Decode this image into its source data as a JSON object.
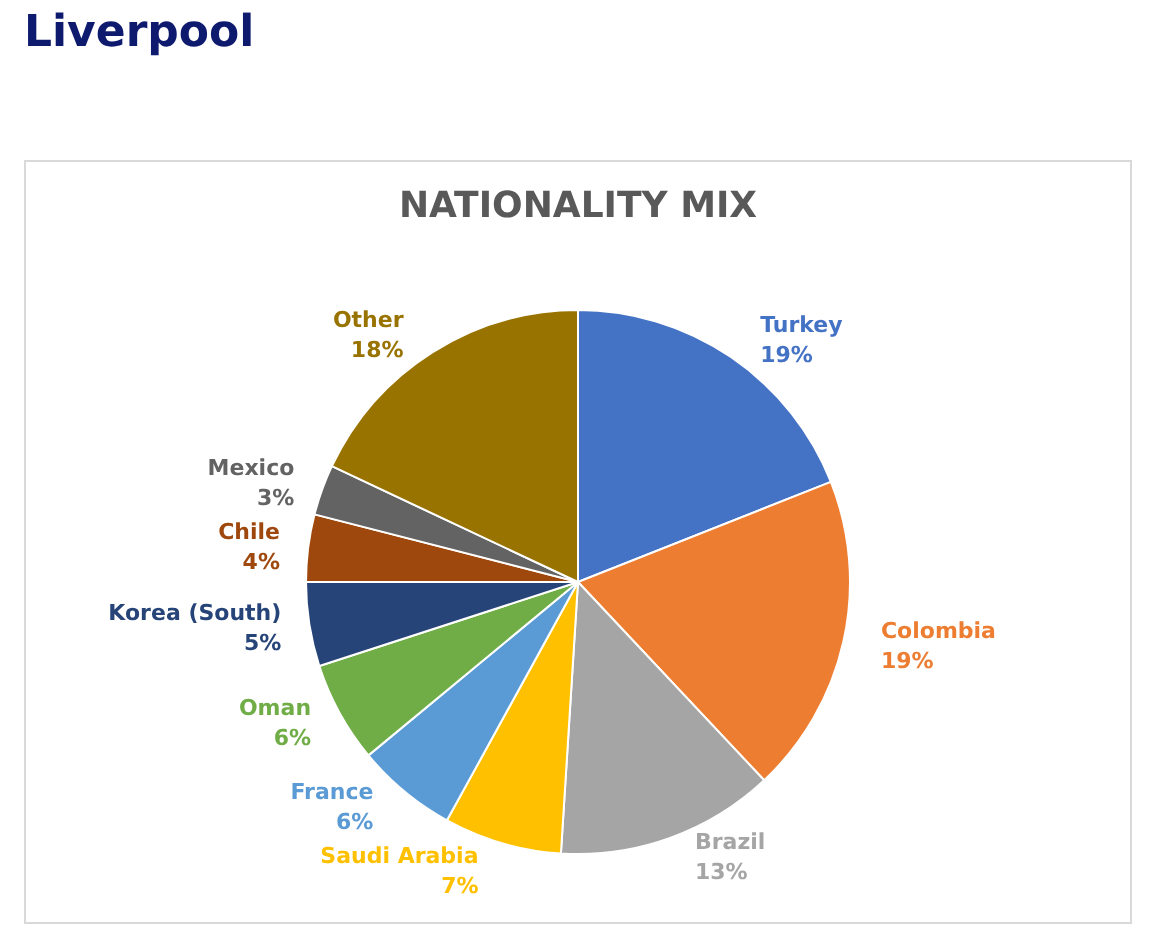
{
  "chart_data": {
    "type": "pie",
    "title": "NATIONALITY MIX",
    "annotations": [
      "Liverpool"
    ],
    "categories": [
      "Turkey",
      "Colombia",
      "Brazil",
      "Saudi Arabia",
      "France",
      "Oman",
      "Korea (South)",
      "Chile",
      "Mexico",
      "Other"
    ],
    "values": [
      19,
      19,
      13,
      7,
      6,
      6,
      5,
      4,
      3,
      18
    ],
    "value_labels": [
      "19%",
      "19%",
      "13%",
      "7%",
      "6%",
      "6%",
      "5%",
      "4%",
      "3%",
      "18%"
    ],
    "colors": [
      "#4472c4",
      "#ed7d31",
      "#a5a5a5",
      "#ffc000",
      "#5b9bd5",
      "#70ad47",
      "#264478",
      "#9e480e",
      "#636363",
      "#997300"
    ],
    "legend": false
  }
}
